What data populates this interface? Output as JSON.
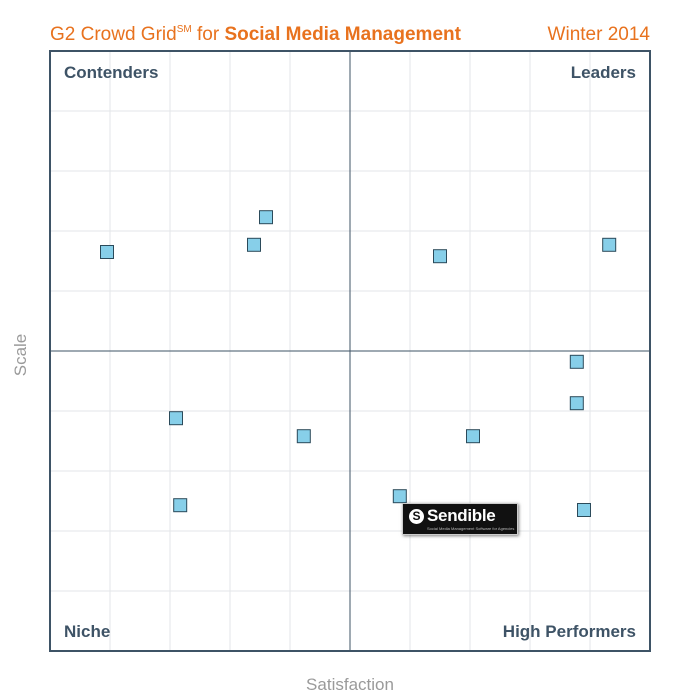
{
  "title": {
    "prefix": "G2 Crowd Grid",
    "superscript": "SM",
    "connector": " for ",
    "subject": "Social Media Management",
    "season": "Winter 2014"
  },
  "colors": {
    "title": "#e8721e",
    "quadrant_label": "#3e5366",
    "axis_label": "#9a9a9a",
    "marker_fill": "#87cfe9",
    "marker_stroke": "#2b4a5a",
    "grid": "#e3e6e8",
    "frame": "#3e5366"
  },
  "chart_data": {
    "type": "scatter",
    "xlabel": "Satisfaction",
    "ylabel": "Scale",
    "xlim": [
      0,
      100
    ],
    "ylim": [
      0,
      100
    ],
    "grid": true,
    "quadrants": {
      "top_left": "Contenders",
      "top_right": "Leaders",
      "bottom_left": "Niche",
      "bottom_right": "High Performers"
    },
    "points": [
      {
        "x": 9.5,
        "y": 66.5
      },
      {
        "x": 34.0,
        "y": 67.7
      },
      {
        "x": 36.0,
        "y": 72.3
      },
      {
        "x": 65.0,
        "y": 65.8
      },
      {
        "x": 93.2,
        "y": 67.7
      },
      {
        "x": 87.8,
        "y": 48.2
      },
      {
        "x": 87.8,
        "y": 41.3
      },
      {
        "x": 21.0,
        "y": 38.8
      },
      {
        "x": 42.3,
        "y": 35.8
      },
      {
        "x": 70.5,
        "y": 35.8
      },
      {
        "x": 21.7,
        "y": 24.3
      },
      {
        "x": 58.3,
        "y": 25.8
      },
      {
        "x": 89.0,
        "y": 23.5
      }
    ],
    "highlight": {
      "point_index": 11,
      "name": "Sendible",
      "tagline": "Social Media Management Software for Agencies"
    }
  }
}
